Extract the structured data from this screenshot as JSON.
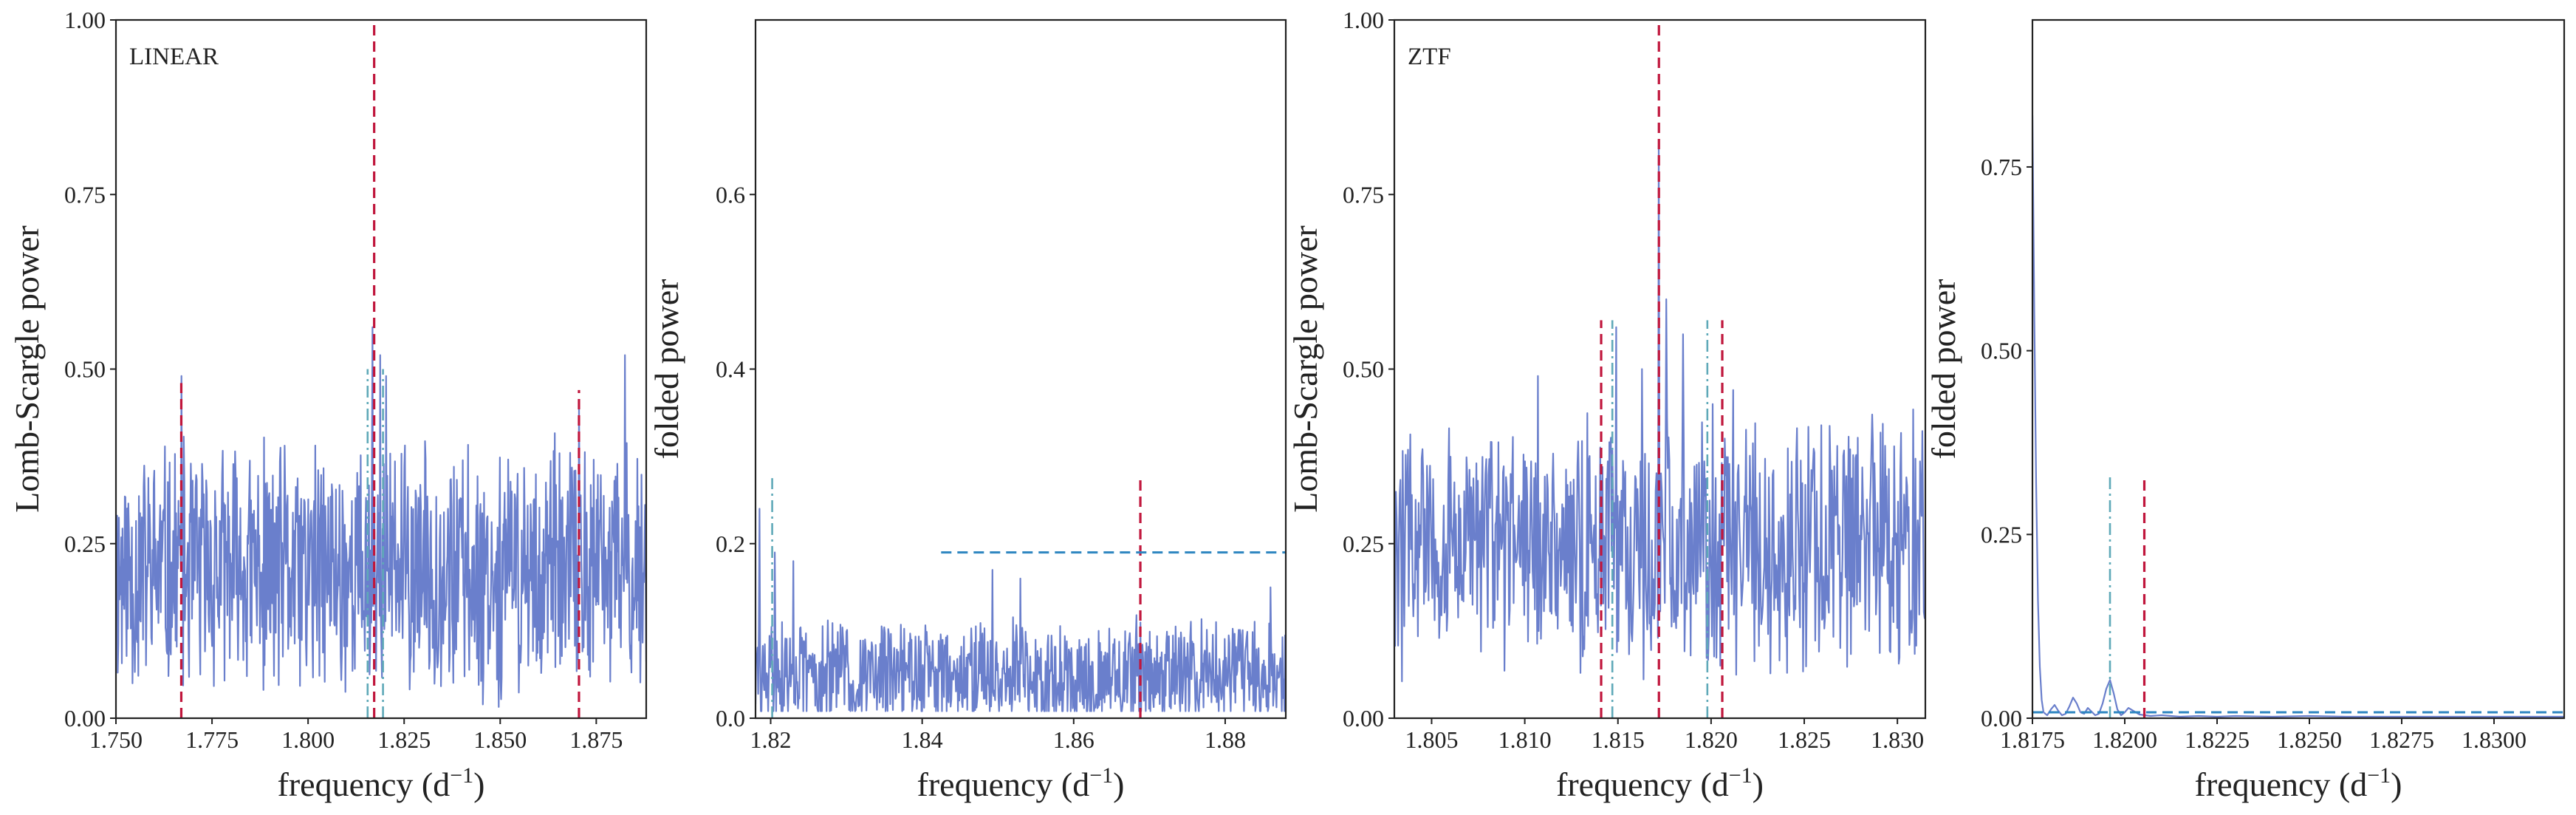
{
  "colors": {
    "series": "#6a7fcc",
    "red_dashed": "#c0163c",
    "cyan_dashdot": "#5fa9b8",
    "blue_dashed": "#2e86c1",
    "axes": "#222222"
  },
  "chart_data": [
    {
      "type": "line",
      "panel_label": "LINEAR",
      "xlabel": "frequency (d",
      "xlabel_sup": "−1",
      "xlabel_close": ")",
      "ylabel": "Lomb-Scargle power",
      "xlim": [
        1.75,
        1.888
      ],
      "ylim": [
        0.0,
        1.0
      ],
      "xticks": [
        1.75,
        1.775,
        1.8,
        1.825,
        1.85,
        1.875
      ],
      "xtick_labels": [
        "1.750",
        "1.775",
        "1.800",
        "1.825",
        "1.850",
        "1.875"
      ],
      "yticks": [
        0.0,
        0.25,
        0.5,
        0.75,
        1.0
      ],
      "ytick_labels": [
        "0.00",
        "0.25",
        "0.50",
        "0.75",
        "1.00"
      ],
      "grid": false,
      "series": {
        "kind": "noise",
        "baseline": 0.21,
        "spread": 0.2,
        "points": 900,
        "seed": 11,
        "peaks": [
          {
            "x": 1.8167,
            "y": 0.56
          },
          {
            "x": 1.8188,
            "y": 0.52
          },
          {
            "x": 1.8203,
            "y": 0.49
          },
          {
            "x": 1.767,
            "y": 0.49
          },
          {
            "x": 1.8825,
            "y": 0.52
          },
          {
            "x": 1.8705,
            "y": 0.45
          }
        ]
      },
      "vlines": [
        {
          "x": 1.8172,
          "y0": 0.0,
          "y1": 1.0,
          "style": "red_dashed"
        },
        {
          "x": 1.767,
          "y0": 0.0,
          "y1": 0.48,
          "style": "red_dashed"
        },
        {
          "x": 1.8705,
          "y0": 0.0,
          "y1": 0.47,
          "style": "red_dashed"
        },
        {
          "x": 1.8155,
          "y0": 0.0,
          "y1": 0.5,
          "style": "cyan_dashdot"
        },
        {
          "x": 1.8195,
          "y0": 0.0,
          "y1": 0.5,
          "style": "cyan_dashdot"
        }
      ],
      "hlines": []
    },
    {
      "type": "line",
      "panel_label": "",
      "xlabel": "frequency (d",
      "xlabel_sup": "−1",
      "xlabel_close": ")",
      "ylabel": "folded power",
      "xlim": [
        1.818,
        1.888
      ],
      "ylim": [
        0.0,
        0.8
      ],
      "xticks": [
        1.82,
        1.84,
        1.86,
        1.88
      ],
      "xtick_labels": [
        "1.82",
        "1.84",
        "1.86",
        "1.88"
      ],
      "yticks": [
        0.0,
        0.2,
        0.4,
        0.6
      ],
      "ytick_labels": [
        "0.0",
        "0.2",
        "0.4",
        "0.6"
      ],
      "grid": false,
      "series": {
        "kind": "noise",
        "baseline": 0.05,
        "spread": 0.07,
        "points": 800,
        "seed": 29,
        "peaks": [
          {
            "x": 1.8185,
            "y": 0.24
          },
          {
            "x": 1.8205,
            "y": 0.19
          },
          {
            "x": 1.823,
            "y": 0.18
          },
          {
            "x": 1.8493,
            "y": 0.17
          },
          {
            "x": 1.853,
            "y": 0.16
          },
          {
            "x": 1.886,
            "y": 0.15
          }
        ]
      },
      "vlines": [
        {
          "x": 1.8688,
          "y0": 0.0,
          "y1": 0.275,
          "style": "red_dashed"
        },
        {
          "x": 1.8202,
          "y0": 0.0,
          "y1": 0.275,
          "style": "cyan_dashdot"
        }
      ],
      "hlines": [
        {
          "y": 0.19,
          "x0": 1.8425,
          "x1": 1.888,
          "style": "blue_dashed"
        }
      ]
    },
    {
      "type": "line",
      "panel_label": "ZTF",
      "xlabel": "frequency (d",
      "xlabel_sup": "−1",
      "xlabel_close": ")",
      "ylabel": "Lomb-Scargle power",
      "xlim": [
        1.803,
        1.8315
      ],
      "ylim": [
        0.0,
        1.0
      ],
      "xticks": [
        1.805,
        1.81,
        1.815,
        1.82,
        1.825,
        1.83
      ],
      "xtick_labels": [
        "1.805",
        "1.810",
        "1.815",
        "1.820",
        "1.825",
        "1.830"
      ],
      "yticks": [
        0.0,
        0.25,
        0.5,
        0.75,
        1.0
      ],
      "ytick_labels": [
        "0.00",
        "0.25",
        "0.50",
        "0.75",
        "1.00"
      ],
      "grid": false,
      "series": {
        "kind": "noise",
        "baseline": 0.25,
        "spread": 0.2,
        "points": 700,
        "seed": 47,
        "peaks": [
          {
            "x": 1.8172,
            "y": 0.82
          },
          {
            "x": 1.8176,
            "y": 0.6
          },
          {
            "x": 1.8149,
            "y": 0.56
          },
          {
            "x": 1.8163,
            "y": 0.5
          },
          {
            "x": 1.8185,
            "y": 0.55
          },
          {
            "x": 1.8107,
            "y": 0.49
          },
          {
            "x": 1.8212,
            "y": 0.47
          },
          {
            "x": 1.8201,
            "y": 0.45
          }
        ]
      },
      "vlines": [
        {
          "x": 1.8172,
          "y0": 0.0,
          "y1": 1.0,
          "style": "red_dashed"
        },
        {
          "x": 1.8141,
          "y0": 0.0,
          "y1": 0.57,
          "style": "red_dashed"
        },
        {
          "x": 1.8206,
          "y0": 0.0,
          "y1": 0.57,
          "style": "red_dashed"
        },
        {
          "x": 1.8147,
          "y0": 0.0,
          "y1": 0.57,
          "style": "cyan_dashdot"
        },
        {
          "x": 1.8198,
          "y0": 0.0,
          "y1": 0.57,
          "style": "cyan_dashdot"
        }
      ],
      "hlines": []
    },
    {
      "type": "line",
      "panel_label": "",
      "xlabel": "frequency (d",
      "xlabel_sup": "−1",
      "xlabel_close": ")",
      "ylabel": "folded power",
      "xlim": [
        1.8175,
        1.8319
      ],
      "ylim": [
        0.0,
        0.95
      ],
      "xticks": [
        1.8175,
        1.82,
        1.8225,
        1.825,
        1.8275,
        1.83
      ],
      "xtick_labels": [
        "1.8175",
        "1.8200",
        "1.8225",
        "1.8250",
        "1.8275",
        "1.8300"
      ],
      "yticks": [
        0.0,
        0.25,
        0.5,
        0.75
      ],
      "ytick_labels": [
        "0.00",
        "0.25",
        "0.50",
        "0.75"
      ],
      "grid": false,
      "series": {
        "kind": "decay",
        "points": [
          [
            1.8175,
            0.82
          ],
          [
            1.81755,
            0.55
          ],
          [
            1.8176,
            0.32
          ],
          [
            1.81765,
            0.16
          ],
          [
            1.8177,
            0.07
          ],
          [
            1.81775,
            0.025
          ],
          [
            1.8178,
            0.008
          ],
          [
            1.8179,
            0.004
          ],
          [
            1.818,
            0.012
          ],
          [
            1.8181,
            0.018
          ],
          [
            1.8182,
            0.01
          ],
          [
            1.8183,
            0.004
          ],
          [
            1.8184,
            0.006
          ],
          [
            1.8185,
            0.016
          ],
          [
            1.8186,
            0.028
          ],
          [
            1.8187,
            0.02
          ],
          [
            1.8188,
            0.008
          ],
          [
            1.8189,
            0.006
          ],
          [
            1.819,
            0.014
          ],
          [
            1.8191,
            0.009
          ],
          [
            1.8192,
            0.004
          ],
          [
            1.8193,
            0.006
          ],
          [
            1.8194,
            0.02
          ],
          [
            1.8195,
            0.04
          ],
          [
            1.8196,
            0.052
          ],
          [
            1.8197,
            0.034
          ],
          [
            1.8198,
            0.012
          ],
          [
            1.8199,
            0.004
          ],
          [
            1.82,
            0.008
          ],
          [
            1.8201,
            0.014
          ],
          [
            1.8202,
            0.011
          ],
          [
            1.8204,
            0.005
          ],
          [
            1.8207,
            0.003
          ],
          [
            1.821,
            0.004
          ],
          [
            1.8215,
            0.002
          ],
          [
            1.822,
            0.003
          ],
          [
            1.8225,
            0.002
          ],
          [
            1.823,
            0.003
          ],
          [
            1.824,
            0.002
          ],
          [
            1.825,
            0.003
          ],
          [
            1.826,
            0.002
          ],
          [
            1.827,
            0.002
          ],
          [
            1.828,
            0.002
          ],
          [
            1.829,
            0.002
          ],
          [
            1.83,
            0.002
          ],
          [
            1.831,
            0.002
          ],
          [
            1.8319,
            0.002
          ]
        ]
      },
      "vlines": [
        {
          "x": 1.82053,
          "y0": 0.0,
          "y1": 0.33,
          "style": "red_dashed"
        },
        {
          "x": 1.8196,
          "y0": 0.0,
          "y1": 0.33,
          "style": "cyan_dashdot"
        }
      ],
      "hlines": [
        {
          "y": 0.008,
          "x0": 1.8175,
          "x1": 1.8319,
          "style": "blue_dashed"
        }
      ]
    }
  ]
}
